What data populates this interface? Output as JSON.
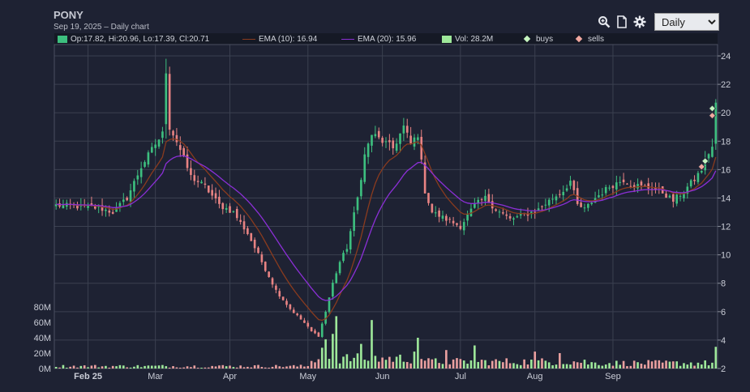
{
  "header": {
    "title": "PONY",
    "subtitle": "Sep 19, 2025 – Daily chart",
    "period": "Daily"
  },
  "toolbar": {
    "icons": [
      "zoom-icon",
      "document-icon",
      "gear-icon"
    ],
    "period_options": [
      "Daily"
    ]
  },
  "legend": {
    "ohlc": "Op:17.82, Hi:20.96, Lo:17.39, Cl:20.71",
    "ema10": "EMA (10): 16.94",
    "ema20": "EMA (20): 15.96",
    "vol": "Vol: 28.2M",
    "buys": "buys",
    "sells": "sells"
  },
  "colors": {
    "background": "#1e2233",
    "plot_bg": "#1e2233",
    "grid": "#3b4050",
    "up": "#3dbf7f",
    "down": "#e88383",
    "vol_up": "#9ee89a",
    "vol_down": "#eaa0a0",
    "ema10": "#8a3b1e",
    "ema20": "#8b2fd6",
    "buys": "#c6f5c0",
    "sells": "#f2a8a0"
  },
  "chart_data": {
    "type": "candlestick",
    "title": "PONY",
    "x_tick_labels": [
      "Feb 25",
      "Mar",
      "Apr",
      "May",
      "Jun",
      "Jul",
      "Aug",
      "Sep"
    ],
    "price_axis": {
      "ticks": [
        2,
        4,
        6,
        8,
        10,
        12,
        14,
        16,
        18,
        20,
        22,
        24
      ],
      "range": [
        2,
        24.8
      ]
    },
    "volume_axis": {
      "ticks": [
        "0M",
        "20M",
        "40M",
        "60M",
        "80M"
      ],
      "range": [
        0,
        80
      ]
    },
    "grid": true,
    "last": {
      "open": 17.82,
      "high": 20.96,
      "low": 17.39,
      "close": 20.71,
      "ema10": 16.94,
      "ema20": 15.96,
      "volume_m": 28.2
    },
    "close_anchors": [
      [
        0,
        13.5
      ],
      [
        12,
        13.3
      ],
      [
        16,
        13.0
      ],
      [
        20,
        14.0
      ],
      [
        24,
        16.2
      ],
      [
        28,
        17.8
      ],
      [
        30,
        18.5
      ],
      [
        31,
        23.0
      ],
      [
        32,
        19.0
      ],
      [
        34,
        18.0
      ],
      [
        38,
        15.5
      ],
      [
        42,
        14.8
      ],
      [
        46,
        13.5
      ],
      [
        50,
        13.0
      ],
      [
        54,
        11.5
      ],
      [
        58,
        9.5
      ],
      [
        62,
        7.5
      ],
      [
        66,
        6.2
      ],
      [
        70,
        5.2
      ],
      [
        72,
        4.6
      ],
      [
        74,
        4.3
      ],
      [
        76,
        6.0
      ],
      [
        78,
        8.0
      ],
      [
        80,
        9.5
      ],
      [
        82,
        10.5
      ],
      [
        85,
        14.0
      ],
      [
        87,
        17.0
      ],
      [
        89,
        18.5
      ],
      [
        92,
        18.0
      ],
      [
        95,
        17.5
      ],
      [
        98,
        19.0
      ],
      [
        100,
        17.8
      ],
      [
        102,
        18.5
      ],
      [
        104,
        14.5
      ],
      [
        106,
        13.0
      ],
      [
        110,
        12.5
      ],
      [
        114,
        12.0
      ],
      [
        118,
        13.5
      ],
      [
        121,
        14.0
      ],
      [
        124,
        13.2
      ],
      [
        128,
        12.5
      ],
      [
        132,
        12.8
      ],
      [
        136,
        13.2
      ],
      [
        140,
        14.0
      ],
      [
        143,
        14.5
      ],
      [
        145,
        15.2
      ],
      [
        147,
        13.5
      ],
      [
        149,
        13.2
      ],
      [
        152,
        14.0
      ],
      [
        156,
        14.8
      ],
      [
        160,
        15.3
      ],
      [
        162,
        15.0
      ],
      [
        165,
        14.8
      ],
      [
        168,
        14.7
      ],
      [
        171,
        14.4
      ],
      [
        174,
        13.8
      ],
      [
        177,
        14.5
      ],
      [
        180,
        15.3
      ],
      [
        182,
        16.0
      ],
      [
        184,
        17.2
      ],
      [
        185,
        17.6
      ],
      [
        186,
        20.71
      ]
    ],
    "volume_spikes_m": [
      [
        75,
        27
      ],
      [
        76,
        38
      ],
      [
        78,
        45
      ],
      [
        79,
        68
      ],
      [
        86,
        32
      ],
      [
        89,
        63
      ],
      [
        101,
        22
      ],
      [
        102,
        40
      ],
      [
        110,
        24
      ],
      [
        118,
        30
      ],
      [
        135,
        22
      ],
      [
        142,
        20
      ],
      [
        186,
        28.2
      ]
    ],
    "buys": [
      [
        183,
        16.6
      ],
      [
        185,
        20.3
      ]
    ],
    "sells": [
      [
        182,
        16.2
      ],
      [
        185,
        19.8
      ]
    ],
    "series": [
      {
        "name": "EMA (10)",
        "period": 10
      },
      {
        "name": "EMA (20)",
        "period": 20
      }
    ]
  }
}
